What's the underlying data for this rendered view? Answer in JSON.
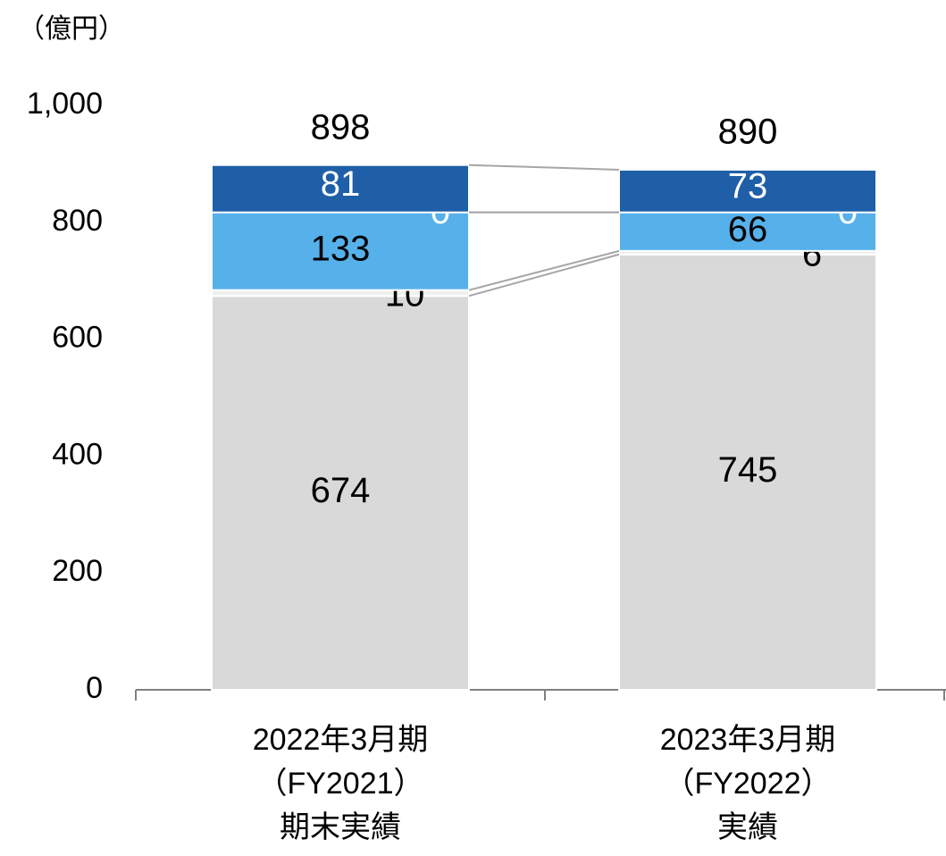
{
  "chart_data": {
    "type": "stacked_bar",
    "y_unit": "（億円）",
    "categories": [
      [
        "2022年3月期",
        "（FY2021）",
        "期末実績"
      ],
      [
        "2023年3月期",
        "（FY2022）",
        "実績"
      ]
    ],
    "series": [
      {
        "color": "#d9d9d9",
        "label_color": "#000000",
        "values": [
          674,
          745
        ]
      },
      {
        "color": "#efefef",
        "label_color": "#000000",
        "values": [
          10,
          6
        ]
      },
      {
        "color": "#56b0ea",
        "label_color": "#000000",
        "values": [
          133,
          66
        ]
      },
      {
        "color": "#ffffff",
        "label_color": "#ffffff",
        "values": [
          0,
          0
        ]
      },
      {
        "color": "#1f5fa8",
        "label_color": "#ffffff",
        "values": [
          81,
          73
        ]
      }
    ],
    "totals": [
      898,
      890
    ],
    "ylim": [
      0,
      1000
    ],
    "yticks": [
      0,
      200,
      400,
      600,
      800,
      {
        "value": 1000,
        "label": "1,000"
      }
    ],
    "grid": false
  }
}
